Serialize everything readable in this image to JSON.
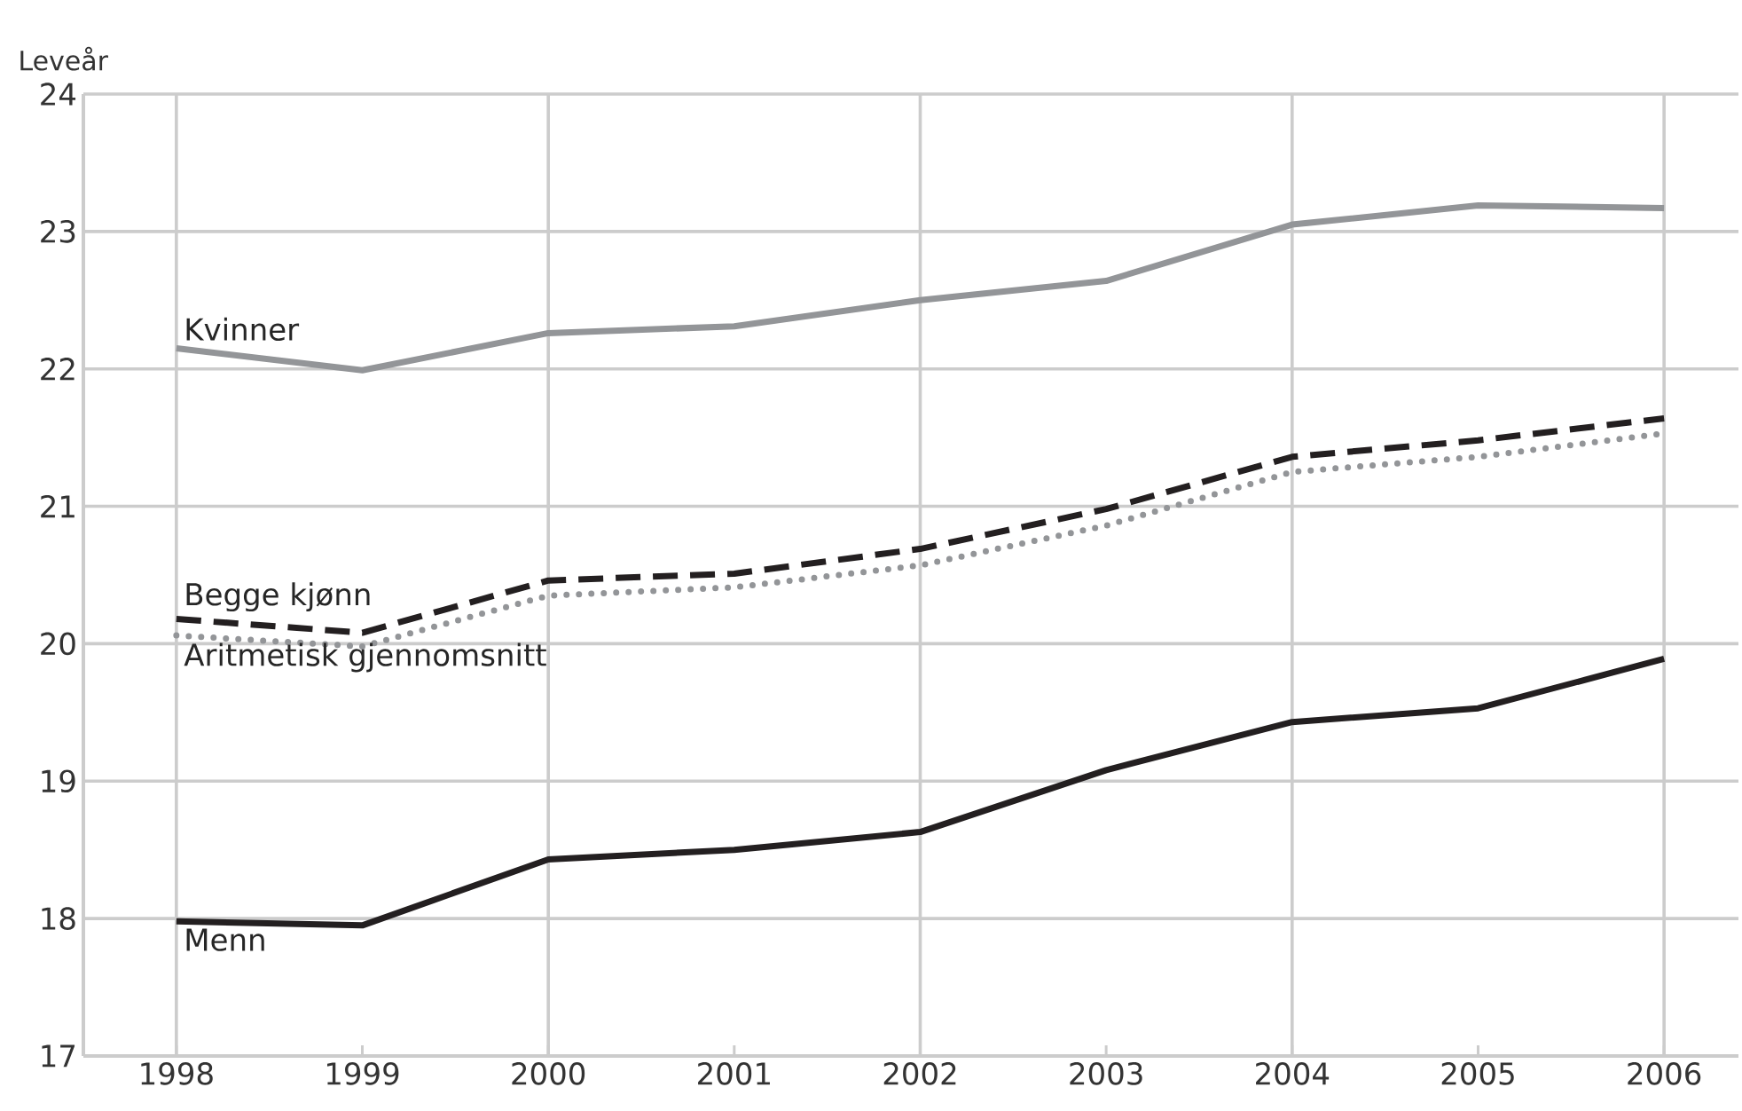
{
  "chart_data": {
    "type": "line",
    "ylabel": "Leveår",
    "x": [
      1998,
      1999,
      2000,
      2001,
      2002,
      2003,
      2004,
      2005,
      2006
    ],
    "series": [
      {
        "name": "Kvinner",
        "color": "#939598",
        "line_style": "solid",
        "values": [
          22.15,
          21.99,
          22.26,
          22.31,
          22.5,
          22.64,
          23.05,
          23.19,
          23.17
        ]
      },
      {
        "name": "Begge kjønn",
        "color": "#231f20",
        "line_style": "dashed",
        "values": [
          20.18,
          20.08,
          20.46,
          20.51,
          20.69,
          20.98,
          21.36,
          21.48,
          21.64
        ]
      },
      {
        "name": "Aritmetisk gjennomsnitt",
        "color": "#939598",
        "line_style": "dotted",
        "values": [
          20.06,
          19.98,
          20.35,
          20.41,
          20.57,
          20.86,
          21.25,
          21.36,
          21.53
        ]
      },
      {
        "name": "Menn",
        "color": "#231f20",
        "line_style": "solid",
        "values": [
          17.98,
          17.95,
          18.43,
          18.5,
          18.63,
          19.08,
          19.43,
          19.53,
          19.89
        ]
      }
    ],
    "xlim": [
      1997.5,
      2006.4
    ],
    "ylim": [
      17,
      24
    ],
    "xticks": [
      1998,
      1999,
      2000,
      2001,
      2002,
      2003,
      2004,
      2005,
      2006
    ],
    "yticks": [
      17,
      18,
      19,
      20,
      21,
      22,
      23,
      24
    ],
    "grid": true,
    "legend": false
  }
}
